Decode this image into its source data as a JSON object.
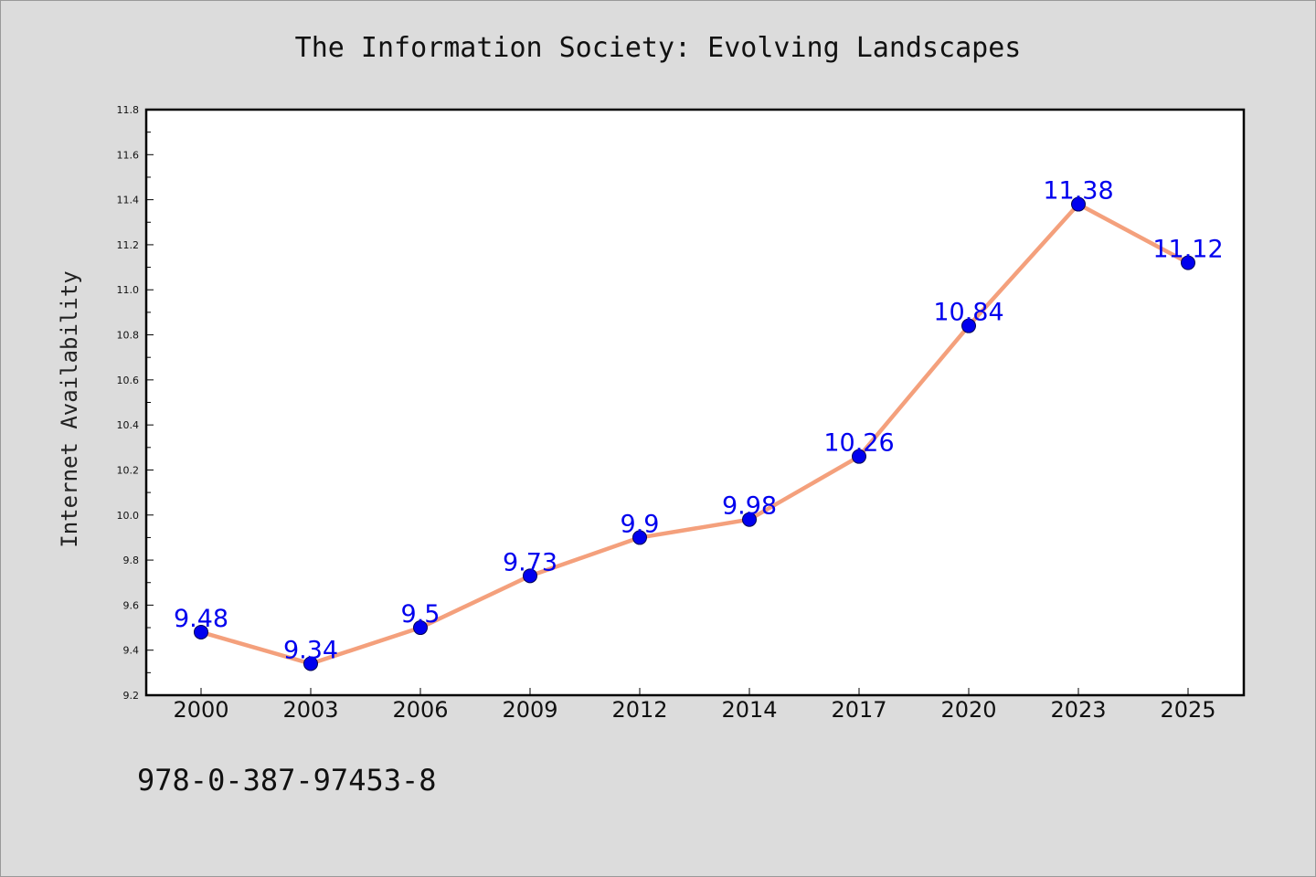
{
  "figure": {
    "isbn": "978-0-387-97453-8"
  },
  "colors": {
    "background": "#dcdcdc",
    "plot_area": "#ffffff",
    "line": "#f4a07c",
    "marker": "#0000ee",
    "data_label": "#0000ee"
  },
  "chart_data": {
    "type": "line",
    "title": "The Information Society: Evolving Landscapes",
    "xlabel": "",
    "ylabel": "Internet Availability",
    "categories": [
      "2000",
      "2003",
      "2006",
      "2009",
      "2012",
      "2014",
      "2017",
      "2020",
      "2023",
      "2025"
    ],
    "series": [
      {
        "values": [
          9.48,
          9.34,
          9.5,
          9.73,
          9.9,
          9.98,
          10.26,
          10.84,
          11.38,
          11.12
        ],
        "data_labels": [
          "9.48",
          "9.34",
          "9.5",
          "9.73",
          "9.9",
          "9.98",
          "10.26",
          "10.84",
          "11.38",
          "11.12"
        ],
        "marker": "circle"
      }
    ],
    "ylim": [
      9.2,
      11.8
    ],
    "yticks": [
      "9.2",
      "9.4",
      "9.6",
      "9.8",
      "10.0",
      "10.2",
      "10.4",
      "10.6",
      "10.8",
      "11.0",
      "11.2",
      "11.4",
      "11.6",
      "11.8"
    ],
    "grid": false,
    "legend": "none"
  }
}
